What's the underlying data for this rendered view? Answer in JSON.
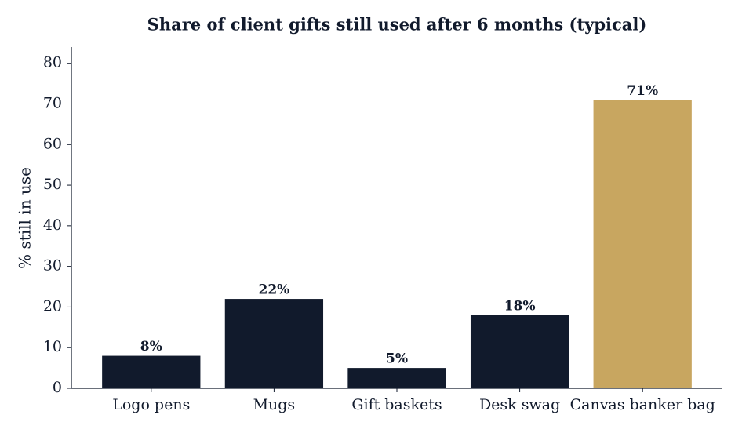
{
  "chart_data": {
    "type": "bar",
    "title": "Share of client gifts still used after 6 months (typical)",
    "y_label": "% still in use",
    "categories": [
      "Logo pens",
      "Mugs",
      "Gift baskets",
      "Desk swag",
      "Canvas banker bag"
    ],
    "values": [
      8,
      22,
      5,
      18,
      71
    ],
    "value_labels": [
      "8%",
      "22%",
      "5%",
      "18%",
      "71%"
    ],
    "colors": [
      "#111a2c",
      "#111a2c",
      "#111a2c",
      "#111a2c",
      "#c8a660"
    ],
    "ylim": [
      0,
      84
    ],
    "yticks": [
      0,
      10,
      20,
      30,
      40,
      50,
      60,
      70,
      80
    ],
    "grid": false
  }
}
